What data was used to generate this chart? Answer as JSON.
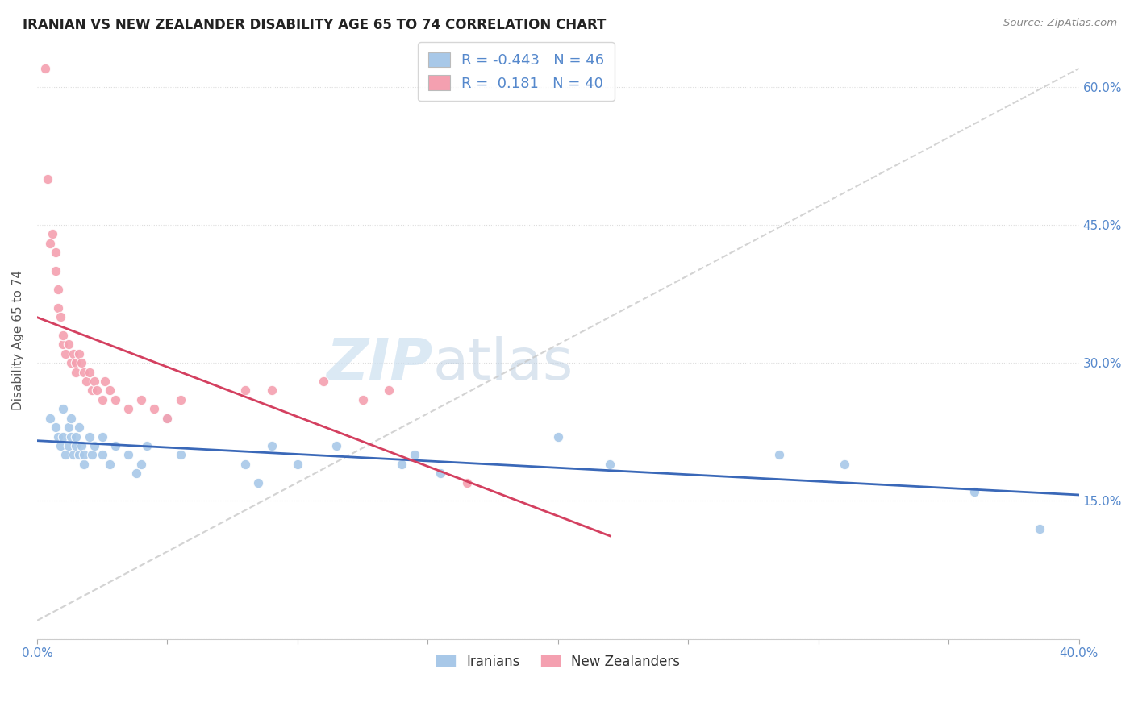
{
  "title": "IRANIAN VS NEW ZEALANDER DISABILITY AGE 65 TO 74 CORRELATION CHART",
  "source": "Source: ZipAtlas.com",
  "ylabel": "Disability Age 65 to 74",
  "legend_labels": [
    "Iranians",
    "New Zealanders"
  ],
  "iranian_R": -0.443,
  "iranian_N": 46,
  "nz_R": 0.181,
  "nz_N": 40,
  "xlim": [
    0.0,
    0.4
  ],
  "ylim": [
    0.0,
    0.65
  ],
  "yticks": [
    0.0,
    0.15,
    0.3,
    0.45,
    0.6
  ],
  "color_iranian": "#a8c8e8",
  "color_nz": "#f4a0b0",
  "color_iranian_line": "#3a68b8",
  "color_nz_line": "#d44060",
  "color_diagonal": "#c8c8c8",
  "color_tick": "#5588cc",
  "color_grid": "#dddddd",
  "iranian_scatter_x": [
    0.005,
    0.007,
    0.008,
    0.009,
    0.01,
    0.01,
    0.011,
    0.012,
    0.012,
    0.013,
    0.013,
    0.014,
    0.015,
    0.015,
    0.016,
    0.016,
    0.017,
    0.018,
    0.018,
    0.02,
    0.021,
    0.022,
    0.025,
    0.025,
    0.028,
    0.03,
    0.035,
    0.038,
    0.04,
    0.042,
    0.05,
    0.055,
    0.08,
    0.085,
    0.09,
    0.1,
    0.115,
    0.14,
    0.145,
    0.155,
    0.2,
    0.22,
    0.285,
    0.31,
    0.36,
    0.385
  ],
  "iranian_scatter_y": [
    0.24,
    0.23,
    0.22,
    0.21,
    0.22,
    0.25,
    0.2,
    0.21,
    0.23,
    0.22,
    0.24,
    0.2,
    0.21,
    0.22,
    0.23,
    0.2,
    0.21,
    0.19,
    0.2,
    0.22,
    0.2,
    0.21,
    0.22,
    0.2,
    0.19,
    0.21,
    0.2,
    0.18,
    0.19,
    0.21,
    0.24,
    0.2,
    0.19,
    0.17,
    0.21,
    0.19,
    0.21,
    0.19,
    0.2,
    0.18,
    0.22,
    0.19,
    0.2,
    0.19,
    0.16,
    0.12
  ],
  "nz_scatter_x": [
    0.003,
    0.004,
    0.005,
    0.006,
    0.007,
    0.007,
    0.008,
    0.008,
    0.009,
    0.01,
    0.01,
    0.011,
    0.012,
    0.013,
    0.014,
    0.015,
    0.015,
    0.016,
    0.017,
    0.018,
    0.019,
    0.02,
    0.021,
    0.022,
    0.023,
    0.025,
    0.026,
    0.028,
    0.03,
    0.035,
    0.04,
    0.045,
    0.05,
    0.055,
    0.08,
    0.09,
    0.11,
    0.125,
    0.135,
    0.165
  ],
  "nz_scatter_y": [
    0.62,
    0.5,
    0.43,
    0.44,
    0.4,
    0.42,
    0.36,
    0.38,
    0.35,
    0.32,
    0.33,
    0.31,
    0.32,
    0.3,
    0.31,
    0.3,
    0.29,
    0.31,
    0.3,
    0.29,
    0.28,
    0.29,
    0.27,
    0.28,
    0.27,
    0.26,
    0.28,
    0.27,
    0.26,
    0.25,
    0.26,
    0.25,
    0.24,
    0.26,
    0.27,
    0.27,
    0.28,
    0.26,
    0.27,
    0.17
  ]
}
